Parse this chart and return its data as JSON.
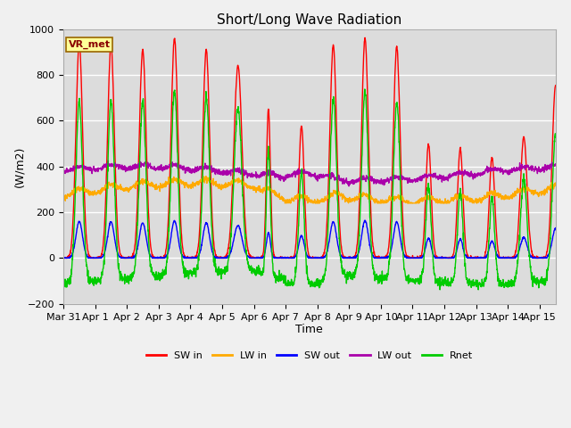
{
  "title": "Short/Long Wave Radiation",
  "xlabel": "Time",
  "ylabel": "(W/m2)",
  "ylim": [
    -200,
    1000
  ],
  "xlim_start": 0,
  "xlim_end": 15.5,
  "xtick_positions": [
    0,
    1,
    2,
    3,
    4,
    5,
    6,
    7,
    8,
    9,
    10,
    11,
    12,
    13,
    14,
    15
  ],
  "xtick_labels": [
    "Mar 31",
    "Apr 1",
    "Apr 2",
    "Apr 3",
    "Apr 4",
    "Apr 5",
    "Apr 6",
    "Apr 7",
    "Apr 8",
    "Apr 9",
    "Apr 10",
    "Apr 11",
    "Apr 12",
    "Apr 13",
    "Apr 14",
    "Apr 15"
  ],
  "ytick_positions": [
    -200,
    0,
    200,
    400,
    600,
    800,
    1000
  ],
  "colors": {
    "SW_in": "#ff0000",
    "LW_in": "#ffaa00",
    "SW_out": "#0000ff",
    "LW_out": "#aa00aa",
    "Rnet": "#00cc00"
  },
  "legend_labels": [
    "SW in",
    "LW in",
    "SW out",
    "LW out",
    "Rnet"
  ],
  "annotation_text": "VR_met",
  "annotation_box_facecolor": "#ffff99",
  "annotation_box_edgecolor": "#996600",
  "plot_bg_color": "#dcdcdc",
  "fig_bg_color": "#f0f0f0",
  "grid_color": "#ffffff",
  "title_fontsize": 11,
  "axis_label_fontsize": 9,
  "tick_fontsize": 8,
  "legend_fontsize": 8,
  "annotation_fontsize": 8,
  "linewidth": 1.0,
  "figsize": [
    6.4,
    4.8
  ],
  "dpi": 100
}
